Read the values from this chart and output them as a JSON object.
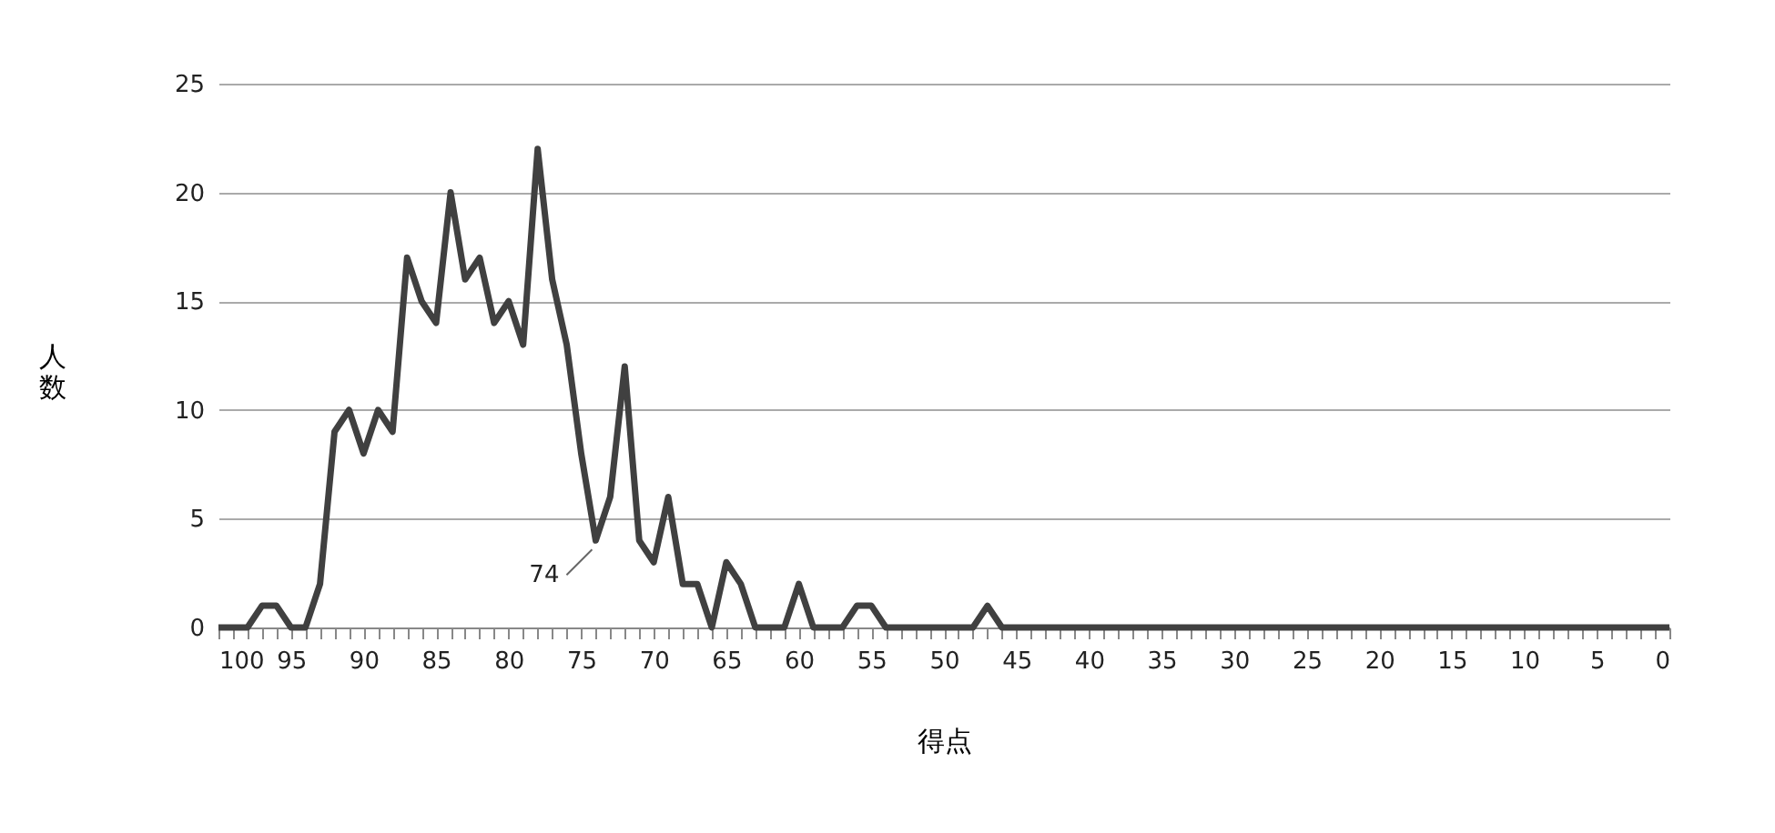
{
  "chart_data": {
    "type": "line",
    "xlabel": "得点",
    "ylabel": "人数",
    "x": [
      100,
      99,
      98,
      97,
      96,
      95,
      94,
      93,
      92,
      91,
      90,
      89,
      88,
      87,
      86,
      85,
      84,
      83,
      82,
      81,
      80,
      79,
      78,
      77,
      76,
      75,
      74,
      73,
      72,
      71,
      70,
      69,
      68,
      67,
      66,
      65,
      64,
      63,
      62,
      61,
      60,
      59,
      58,
      57,
      56,
      55,
      54,
      53,
      52,
      51,
      50,
      49,
      48,
      47,
      46,
      45,
      44,
      43,
      42,
      41,
      40,
      39,
      38,
      37,
      36,
      35,
      34,
      33,
      32,
      31,
      30,
      29,
      28,
      27,
      26,
      25,
      24,
      23,
      22,
      21,
      20,
      19,
      18,
      17,
      16,
      15,
      14,
      13,
      12,
      11,
      10,
      9,
      8,
      7,
      6,
      5,
      4,
      3,
      2,
      1,
      0
    ],
    "series": [
      {
        "color": "#404040",
        "values": [
          0,
          0,
          0,
          1,
          1,
          0,
          0,
          2,
          9,
          10,
          8,
          10,
          9,
          17,
          15,
          14,
          20,
          16,
          17,
          14,
          15,
          13,
          22,
          16,
          13,
          8,
          4,
          6,
          12,
          4,
          3,
          6,
          2,
          2,
          0,
          3,
          2,
          0,
          0,
          0,
          2,
          0,
          0,
          0,
          1,
          1,
          0,
          0,
          0,
          0,
          0,
          0,
          0,
          1,
          0,
          0,
          0,
          0,
          0,
          0,
          0,
          0,
          0,
          0,
          0,
          0,
          0,
          0,
          0,
          0,
          0,
          0,
          0,
          0,
          0,
          0,
          0,
          0,
          0,
          0,
          0,
          0,
          0,
          0,
          0,
          0,
          0,
          0,
          0,
          0,
          0,
          0,
          0,
          0,
          0,
          0,
          0,
          0,
          0,
          0,
          0
        ]
      }
    ],
    "xlim": [
      100,
      0
    ],
    "xticks": [
      100,
      {
        "value": 99,
        "label": null
      },
      {
        "value": 98,
        "label": null
      },
      {
        "value": 97,
        "label": null
      },
      {
        "value": 96,
        "label": null
      },
      95,
      {
        "value": 94,
        "label": null
      },
      {
        "value": 93,
        "label": null
      },
      {
        "value": 92,
        "label": null
      },
      {
        "value": 91,
        "label": null
      },
      90,
      {
        "value": 89,
        "label": null
      },
      {
        "value": 88,
        "label": null
      },
      {
        "value": 87,
        "label": null
      },
      {
        "value": 86,
        "label": null
      },
      85,
      {
        "value": 84,
        "label": null
      },
      {
        "value": 83,
        "label": null
      },
      {
        "value": 82,
        "label": null
      },
      {
        "value": 81,
        "label": null
      },
      80,
      {
        "value": 79,
        "label": null
      },
      {
        "value": 78,
        "label": null
      },
      {
        "value": 77,
        "label": null
      },
      {
        "value": 76,
        "label": null
      },
      75,
      {
        "value": 74,
        "label": null
      },
      {
        "value": 73,
        "label": null
      },
      {
        "value": 72,
        "label": null
      },
      {
        "value": 71,
        "label": null
      },
      70,
      {
        "value": 69,
        "label": null
      },
      {
        "value": 68,
        "label": null
      },
      {
        "value": 67,
        "label": null
      },
      {
        "value": 66,
        "label": null
      },
      65,
      {
        "value": 64,
        "label": null
      },
      {
        "value": 63,
        "label": null
      },
      {
        "value": 62,
        "label": null
      },
      {
        "value": 61,
        "label": null
      },
      60,
      {
        "value": 59,
        "label": null
      },
      {
        "value": 58,
        "label": null
      },
      {
        "value": 57,
        "label": null
      },
      {
        "value": 56,
        "label": null
      },
      55,
      {
        "value": 54,
        "label": null
      },
      {
        "value": 53,
        "label": null
      },
      {
        "value": 52,
        "label": null
      },
      {
        "value": 51,
        "label": null
      },
      50,
      {
        "value": 49,
        "label": null
      },
      {
        "value": 48,
        "label": null
      },
      {
        "value": 47,
        "label": null
      },
      {
        "value": 46,
        "label": null
      },
      45,
      {
        "value": 44,
        "label": null
      },
      {
        "value": 43,
        "label": null
      },
      {
        "value": 42,
        "label": null
      },
      {
        "value": 41,
        "label": null
      },
      40,
      {
        "value": 39,
        "label": null
      },
      {
        "value": 38,
        "label": null
      },
      {
        "value": 37,
        "label": null
      },
      {
        "value": 36,
        "label": null
      },
      35,
      {
        "value": 34,
        "label": null
      },
      {
        "value": 33,
        "label": null
      },
      {
        "value": 32,
        "label": null
      },
      {
        "value": 31,
        "label": null
      },
      30,
      {
        "value": 29,
        "label": null
      },
      {
        "value": 28,
        "label": null
      },
      {
        "value": 27,
        "label": null
      },
      {
        "value": 26,
        "label": null
      },
      25,
      {
        "value": 24,
        "label": null
      },
      {
        "value": 23,
        "label": null
      },
      {
        "value": 22,
        "label": null
      },
      {
        "value": 21,
        "label": null
      },
      20,
      {
        "value": 19,
        "label": null
      },
      {
        "value": 18,
        "label": null
      },
      {
        "value": 17,
        "label": null
      },
      {
        "value": 16,
        "label": null
      },
      15,
      {
        "value": 14,
        "label": null
      },
      {
        "value": 13,
        "label": null
      },
      {
        "value": 12,
        "label": null
      },
      {
        "value": 11,
        "label": null
      },
      10,
      {
        "value": 9,
        "label": null
      },
      {
        "value": 8,
        "label": null
      },
      {
        "value": 7,
        "label": null
      },
      {
        "value": 6,
        "label": null
      },
      5,
      {
        "value": 4,
        "label": null
      },
      {
        "value": 3,
        "label": null
      },
      {
        "value": 2,
        "label": null
      },
      {
        "value": 1,
        "label": null
      },
      0
    ],
    "ylim": [
      0,
      25
    ],
    "yticks": [
      0,
      5,
      10,
      15,
      20,
      25
    ],
    "grid": "y",
    "legend": false,
    "marker": "none",
    "line_style": "solid",
    "annotations": [
      {
        "text": "74",
        "x": 74,
        "y": 4
      }
    ]
  }
}
